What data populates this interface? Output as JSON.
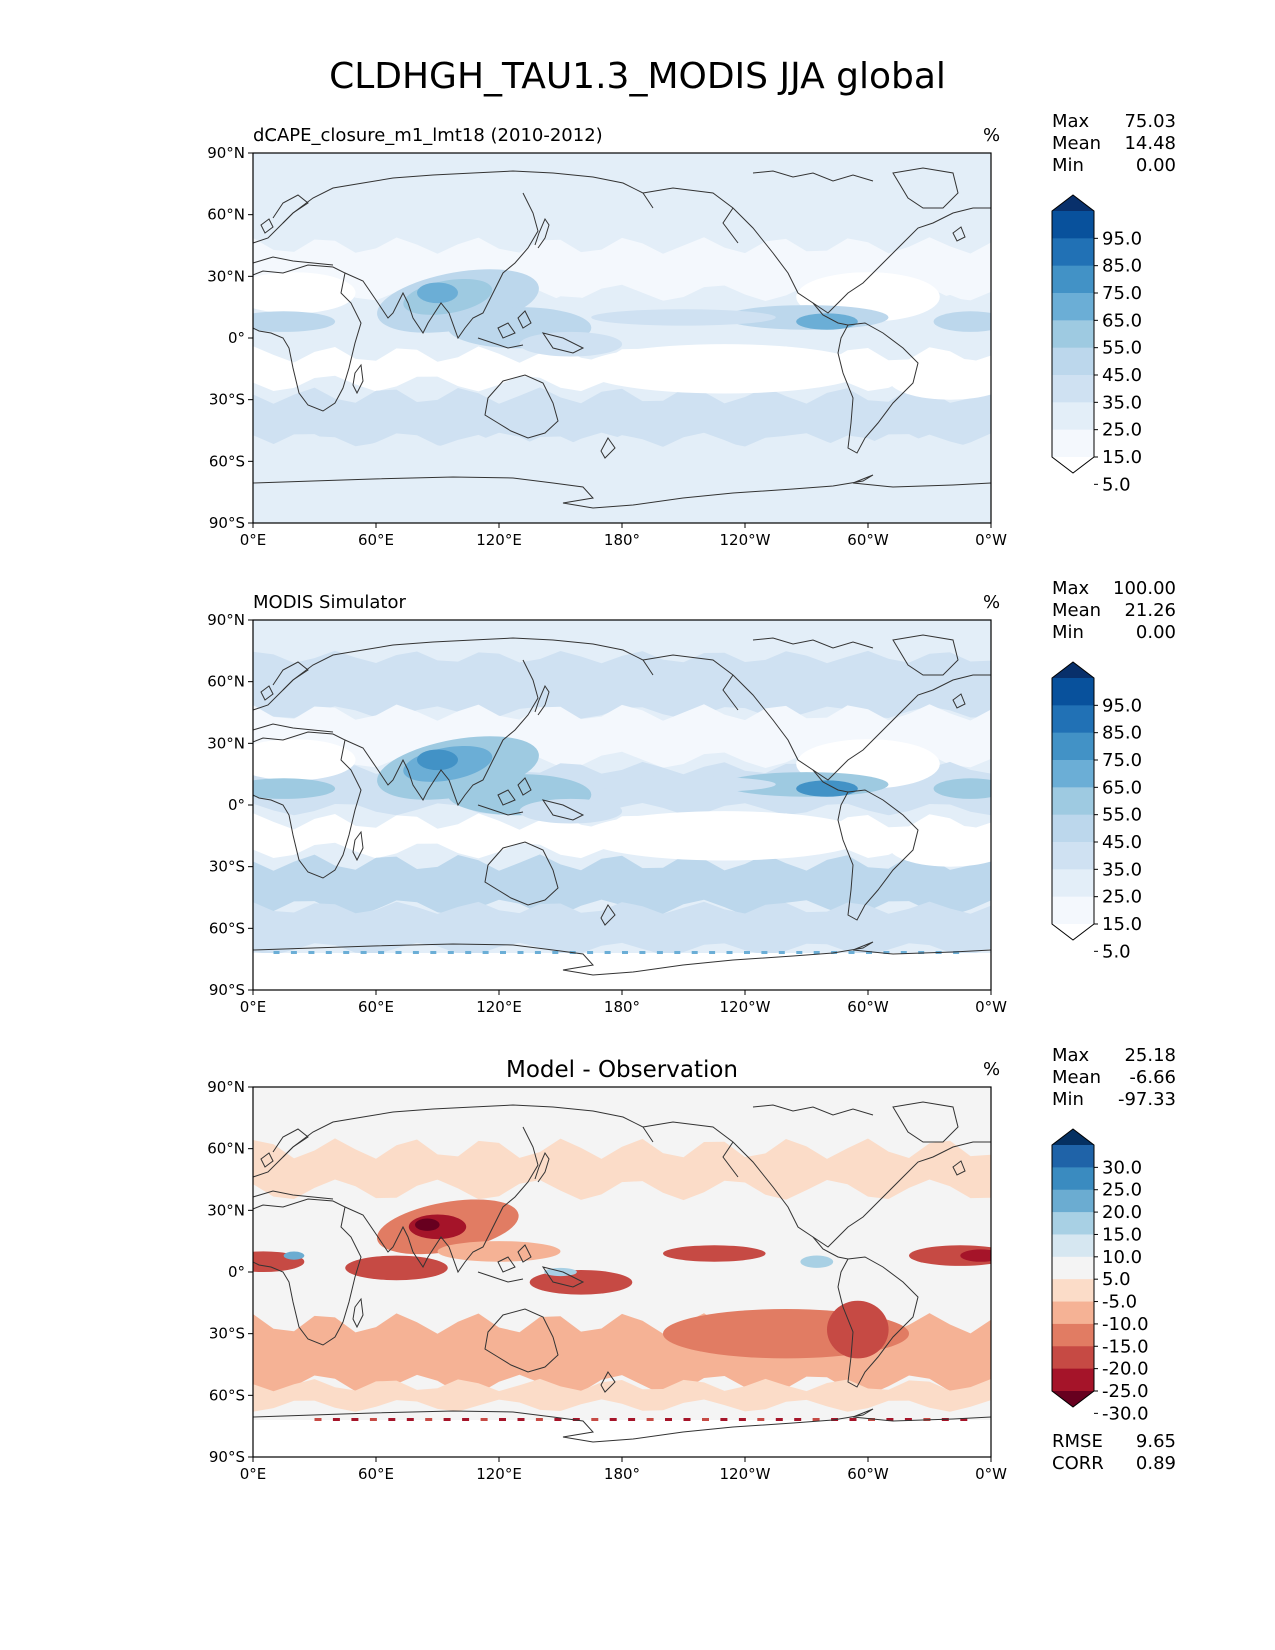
{
  "figure": {
    "title": "CLDHGH_TAU1.3_MODIS JJA global"
  },
  "axes": {
    "lat_ticks": [
      "90°N",
      "60°N",
      "30°N",
      "0°",
      "30°S",
      "60°S",
      "90°S"
    ],
    "lon_ticks": [
      "0°E",
      "60°E",
      "120°E",
      "180°",
      "120°W",
      "60°W",
      "0°W"
    ]
  },
  "panels": [
    {
      "id": "test",
      "left_title": "dCAPE_closure_m1_lmt18 (2010-2012)",
      "center_title": "",
      "units": "%",
      "stats": [
        {
          "label": "Max",
          "value": "75.03"
        },
        {
          "label": "Mean",
          "value": "14.48"
        },
        {
          "label": "Min",
          "value": "0.00"
        }
      ],
      "colorbar_ticks": [
        "95.0",
        "85.0",
        "75.0",
        "65.0",
        "55.0",
        "45.0",
        "35.0",
        "25.0",
        "15.0",
        "5.0"
      ],
      "colorbar_colors": [
        "#08306b",
        "#08519c",
        "#2171b5",
        "#4292c6",
        "#6baed6",
        "#9ecae1",
        "#bcd7ec",
        "#cfe1f2",
        "#e3eef8",
        "#f4f8fd",
        "#ffffff"
      ],
      "metrics": []
    },
    {
      "id": "reference",
      "left_title": "MODIS Simulator",
      "center_title": "",
      "units": "%",
      "stats": [
        {
          "label": "Max",
          "value": "100.00"
        },
        {
          "label": "Mean",
          "value": "21.26"
        },
        {
          "label": "Min",
          "value": "0.00"
        }
      ],
      "colorbar_ticks": [
        "95.0",
        "85.0",
        "75.0",
        "65.0",
        "55.0",
        "45.0",
        "35.0",
        "25.0",
        "15.0",
        "5.0"
      ],
      "colorbar_colors": [
        "#08306b",
        "#08519c",
        "#2171b5",
        "#4292c6",
        "#6baed6",
        "#9ecae1",
        "#bcd7ec",
        "#cfe1f2",
        "#e3eef8",
        "#f4f8fd",
        "#ffffff"
      ],
      "metrics": []
    },
    {
      "id": "difference",
      "left_title": "",
      "center_title": "Model - Observation",
      "units": "%",
      "stats": [
        {
          "label": "Max",
          "value": "25.18"
        },
        {
          "label": "Mean",
          "value": "-6.66"
        },
        {
          "label": "Min",
          "value": "-97.33"
        }
      ],
      "colorbar_ticks": [
        "30.0",
        "25.0",
        "20.0",
        "15.0",
        "10.0",
        "5.0",
        "-5.0",
        "-10.0",
        "-15.0",
        "-20.0",
        "-25.0",
        "-30.0"
      ],
      "colorbar_colors": [
        "#053061",
        "#1f63a8",
        "#3a8bc0",
        "#6bacd1",
        "#a8d0e4",
        "#d6e7f1",
        "#f4f4f4",
        "#fbdcc8",
        "#f5b295",
        "#e17c63",
        "#c64a44",
        "#a51429",
        "#67001f"
      ],
      "metrics": [
        {
          "label": "RMSE",
          "value": "9.65"
        },
        {
          "label": "CORR",
          "value": "0.89"
        }
      ]
    }
  ],
  "colors": {
    "land_outline": "#333333",
    "test_base": "#e1ecf7",
    "diff_base": "#f4f4f4"
  }
}
